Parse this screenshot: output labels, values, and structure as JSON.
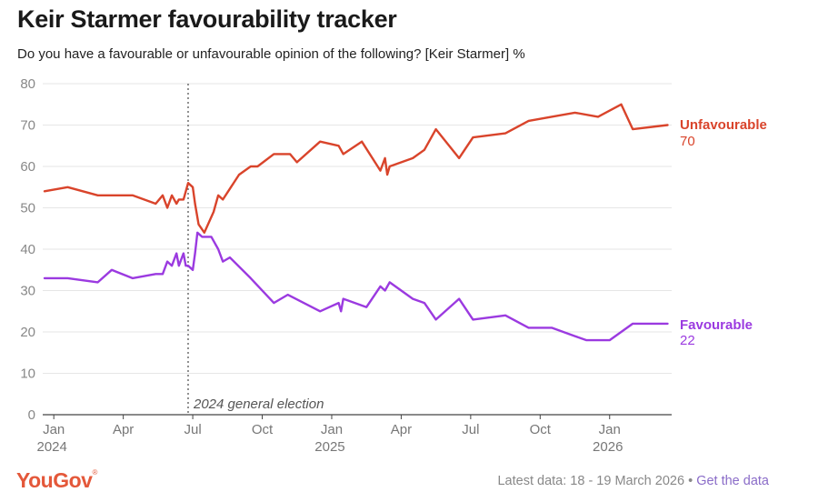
{
  "header": {
    "title": "Keir Starmer favourability tracker",
    "subtitle": "Do you have a favourable or unfavourable opinion of the following? [Keir Starmer] %"
  },
  "footer": {
    "logo": "YouGov",
    "latest": "Latest data: 18 - 19 March 2026",
    "separator": "•",
    "link": "Get the data"
  },
  "colors": {
    "unfavourable": "#d9442b",
    "favourable": "#9b3ae0",
    "grid": "#e6e6e6",
    "axis": "#444444"
  },
  "chart_data": {
    "type": "line",
    "title": "Keir Starmer favourability tracker",
    "xlabel": "",
    "ylabel": "%",
    "ylim": [
      0,
      80
    ],
    "yticks": [
      "0",
      "10",
      "20",
      "30",
      "40",
      "50",
      "60",
      "70",
      "80"
    ],
    "xlim": [
      0,
      27
    ],
    "xticks": [
      {
        "x": 0.4,
        "label": "Jan",
        "year": "2024"
      },
      {
        "x": 3.4,
        "label": "Apr",
        "year": ""
      },
      {
        "x": 6.4,
        "label": "Jul",
        "year": ""
      },
      {
        "x": 9.4,
        "label": "Oct",
        "year": ""
      },
      {
        "x": 12.4,
        "label": "Jan",
        "year": "2025"
      },
      {
        "x": 15.4,
        "label": "Apr",
        "year": ""
      },
      {
        "x": 18.4,
        "label": "Jul",
        "year": ""
      },
      {
        "x": 21.4,
        "label": "Oct",
        "year": ""
      },
      {
        "x": 24.4,
        "label": "Jan",
        "year": "2026"
      }
    ],
    "grid": true,
    "annotations": [
      {
        "x": 6.2,
        "label": "2024 general election"
      }
    ],
    "series": [
      {
        "name": "Unfavourable",
        "last_value": "70",
        "points": [
          [
            0.0,
            54
          ],
          [
            1.0,
            55
          ],
          [
            2.3,
            53
          ],
          [
            3.8,
            53
          ],
          [
            4.8,
            51
          ],
          [
            5.1,
            53
          ],
          [
            5.3,
            50
          ],
          [
            5.5,
            53
          ],
          [
            5.7,
            51
          ],
          [
            5.8,
            52
          ],
          [
            6.0,
            52
          ],
          [
            6.2,
            56
          ],
          [
            6.4,
            55
          ],
          [
            6.5,
            51
          ],
          [
            6.65,
            46
          ],
          [
            6.9,
            44
          ],
          [
            7.3,
            49
          ],
          [
            7.5,
            53
          ],
          [
            7.7,
            52
          ],
          [
            8.4,
            58
          ],
          [
            8.9,
            60
          ],
          [
            9.2,
            60
          ],
          [
            9.9,
            63
          ],
          [
            10.6,
            63
          ],
          [
            10.9,
            61
          ],
          [
            11.9,
            66
          ],
          [
            12.7,
            65
          ],
          [
            12.9,
            63
          ],
          [
            13.7,
            66
          ],
          [
            14.5,
            59
          ],
          [
            14.7,
            62
          ],
          [
            14.8,
            58
          ],
          [
            14.9,
            60
          ],
          [
            15.9,
            62
          ],
          [
            16.4,
            64
          ],
          [
            16.9,
            69
          ],
          [
            17.9,
            62
          ],
          [
            18.5,
            67
          ],
          [
            19.9,
            68
          ],
          [
            20.9,
            71
          ],
          [
            22.9,
            73
          ],
          [
            23.9,
            72
          ],
          [
            24.9,
            75
          ],
          [
            25.4,
            69
          ],
          [
            26.9,
            70
          ]
        ]
      },
      {
        "name": "Favourable",
        "last_value": "22",
        "points": [
          [
            0.0,
            33
          ],
          [
            1.0,
            33
          ],
          [
            2.3,
            32
          ],
          [
            2.9,
            35
          ],
          [
            3.8,
            33
          ],
          [
            4.8,
            34
          ],
          [
            5.1,
            34
          ],
          [
            5.3,
            37
          ],
          [
            5.5,
            36
          ],
          [
            5.7,
            39
          ],
          [
            5.8,
            36
          ],
          [
            6.0,
            39
          ],
          [
            6.1,
            36
          ],
          [
            6.2,
            36
          ],
          [
            6.4,
            35
          ],
          [
            6.5,
            39
          ],
          [
            6.6,
            44
          ],
          [
            6.8,
            43
          ],
          [
            7.2,
            43
          ],
          [
            7.5,
            40
          ],
          [
            7.7,
            37
          ],
          [
            8.0,
            38
          ],
          [
            8.9,
            33
          ],
          [
            9.9,
            27
          ],
          [
            10.5,
            29
          ],
          [
            11.9,
            25
          ],
          [
            12.3,
            26
          ],
          [
            12.7,
            27
          ],
          [
            12.8,
            25
          ],
          [
            12.9,
            28
          ],
          [
            13.9,
            26
          ],
          [
            14.5,
            31
          ],
          [
            14.7,
            30
          ],
          [
            14.9,
            32
          ],
          [
            15.9,
            28
          ],
          [
            16.4,
            27
          ],
          [
            16.9,
            23
          ],
          [
            17.9,
            28
          ],
          [
            18.5,
            23
          ],
          [
            19.9,
            24
          ],
          [
            20.9,
            21
          ],
          [
            21.9,
            21
          ],
          [
            22.9,
            19
          ],
          [
            23.4,
            18
          ],
          [
            24.4,
            18
          ],
          [
            25.4,
            22
          ],
          [
            26.9,
            22
          ]
        ]
      }
    ]
  }
}
